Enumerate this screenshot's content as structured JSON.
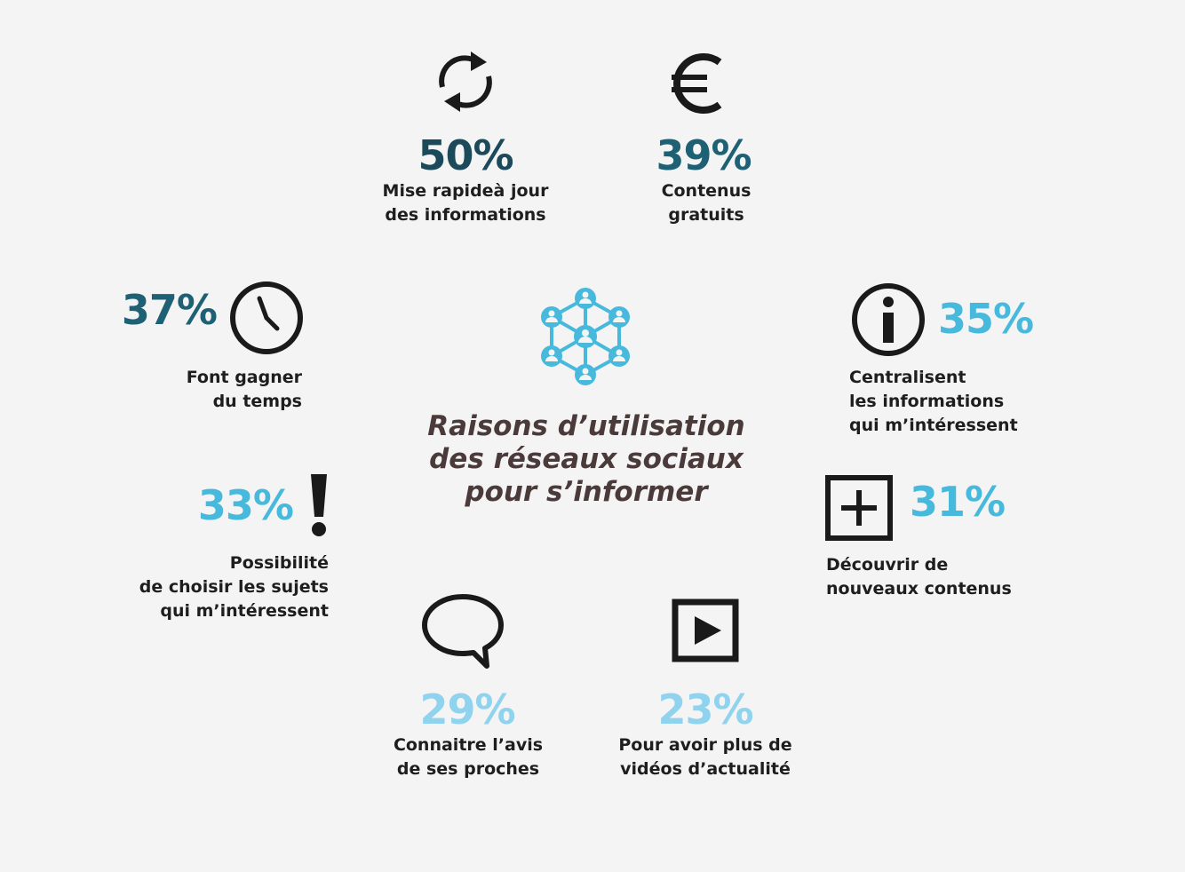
{
  "colors": {
    "dark_teal": "#1d4a5a",
    "teal": "#1e6074",
    "cyan": "#46b9dc",
    "light_cyan": "#8fd3ee",
    "icon": "#1a1a1a",
    "title": "#4a3a3a"
  },
  "center": {
    "title": "Raisons d’utilisation\ndes réseaux sociaux\npour s’informer",
    "icon": "network-users-icon"
  },
  "items": [
    {
      "id": "mise-a-jour",
      "value": "50%",
      "label": "Mise rapideà jour\ndes informations",
      "icon": "refresh-icon"
    },
    {
      "id": "contenus-gratuits",
      "value": "39%",
      "label": "Contenus\ngratuits",
      "icon": "euro-icon"
    },
    {
      "id": "gagner-temps",
      "value": "37%",
      "label": "Font gagner\ndu temps",
      "icon": "clock-icon"
    },
    {
      "id": "centralisent",
      "value": "35%",
      "label": "Centralisent\nles informations\nqui m’intéressent",
      "icon": "info-icon"
    },
    {
      "id": "choisir-sujets",
      "value": "33%",
      "label": "Possibilité\nde choisir les sujets\nqui m’intéressent",
      "icon": "exclamation-icon"
    },
    {
      "id": "nouveaux-contenus",
      "value": "31%",
      "label": "Découvrir de\nnouveaux contenus",
      "icon": "plus-box-icon"
    },
    {
      "id": "avis-proches",
      "value": "29%",
      "label": "Connaitre l’avis\nde ses proches",
      "icon": "speech-bubble-icon"
    },
    {
      "id": "videos",
      "value": "23%",
      "label": "Pour avoir plus de\nvidéos d’actualité",
      "icon": "play-box-icon"
    }
  ]
}
